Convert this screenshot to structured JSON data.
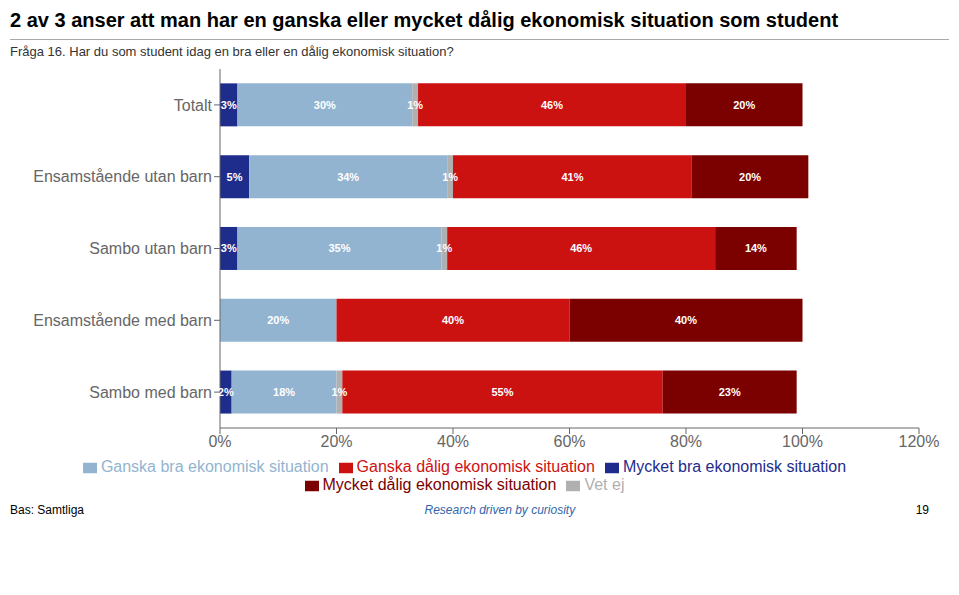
{
  "chart_data": {
    "type": "bar",
    "orientation": "horizontal",
    "stacked": true,
    "data_labels": true,
    "title": "2 av 3 anser att man har en ganska eller mycket dålig ekonomisk situation som student",
    "subtitle": "Fråga 16. Har du som student idag en bra eller en dålig ekonomisk situation?",
    "categories": [
      "Totalt",
      "Ensamstående utan barn",
      "Sambo utan barn",
      "Ensamstående med barn",
      "Sambo med barn"
    ],
    "series": [
      {
        "name": "Mycket bra ekonomisk situation",
        "color": "#1E2D8C",
        "values": [
          3,
          5,
          3,
          0,
          2
        ],
        "value_labels": [
          "3%",
          "5%",
          "3%",
          null,
          "2%"
        ]
      },
      {
        "name": "Ganska bra ekonomisk situation",
        "color": "#92B4D0",
        "values": [
          30,
          34,
          35,
          20,
          18
        ],
        "value_labels": [
          "30%",
          "34%",
          "35%",
          "20%",
          "18%"
        ]
      },
      {
        "name": "Vet ej",
        "color": "#B0B0B0",
        "values": [
          1,
          1,
          1,
          0,
          1
        ],
        "value_labels": [
          "1%",
          "1%",
          "1%",
          null,
          "1%"
        ]
      },
      {
        "name": "Ganska dålig ekonomisk situation",
        "color": "#CC1111",
        "values": [
          46,
          41,
          46,
          40,
          55
        ],
        "value_labels": [
          "46%",
          "41%",
          "46%",
          "40%",
          "55%"
        ]
      },
      {
        "name": "Mycket dålig ekonomisk situation",
        "color": "#7B0000",
        "values": [
          20,
          20,
          14,
          40,
          23
        ],
        "value_labels": [
          "20%",
          "20%",
          "14%",
          "40%",
          "23%"
        ]
      }
    ],
    "xlim": [
      0,
      120
    ],
    "xticks": [
      {
        "value": 0,
        "label": "0%"
      },
      {
        "value": 20,
        "label": "20%"
      },
      {
        "value": 40,
        "label": "40%"
      },
      {
        "value": 60,
        "label": "60%"
      },
      {
        "value": 80,
        "label": "80%"
      },
      {
        "value": 100,
        "label": "100%"
      },
      {
        "value": 120,
        "label": "120%"
      }
    ],
    "legend": "bottom",
    "annotations": [
      "Bas: Samtliga",
      "Research driven by curiosity",
      "19"
    ]
  }
}
